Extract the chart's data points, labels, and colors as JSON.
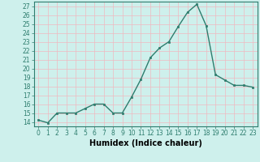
{
  "x": [
    0,
    1,
    2,
    3,
    4,
    5,
    6,
    7,
    8,
    9,
    10,
    11,
    12,
    13,
    14,
    15,
    16,
    17,
    18,
    19,
    20,
    21,
    22,
    23
  ],
  "y": [
    14.2,
    13.9,
    15.0,
    15.0,
    15.0,
    15.5,
    16.0,
    16.0,
    15.0,
    15.0,
    16.8,
    18.8,
    21.2,
    22.3,
    23.0,
    24.7,
    26.3,
    27.2,
    24.8,
    19.3,
    18.7,
    18.1,
    18.1,
    17.9
  ],
  "line_color": "#2e7d6e",
  "marker": "s",
  "markersize": 2,
  "linewidth": 1.0,
  "xlabel": "Humidex (Indice chaleur)",
  "xlim": [
    -0.5,
    23.5
  ],
  "ylim": [
    13.5,
    27.5
  ],
  "yticks": [
    14,
    15,
    16,
    17,
    18,
    19,
    20,
    21,
    22,
    23,
    24,
    25,
    26,
    27
  ],
  "xticks": [
    0,
    1,
    2,
    3,
    4,
    5,
    6,
    7,
    8,
    9,
    10,
    11,
    12,
    13,
    14,
    15,
    16,
    17,
    18,
    19,
    20,
    21,
    22,
    23
  ],
  "bg_color": "#cef0ec",
  "grid_color": "#f0b8c0",
  "tick_fontsize": 5.5,
  "xlabel_fontsize": 7,
  "axis_color": "#2e7d6e"
}
